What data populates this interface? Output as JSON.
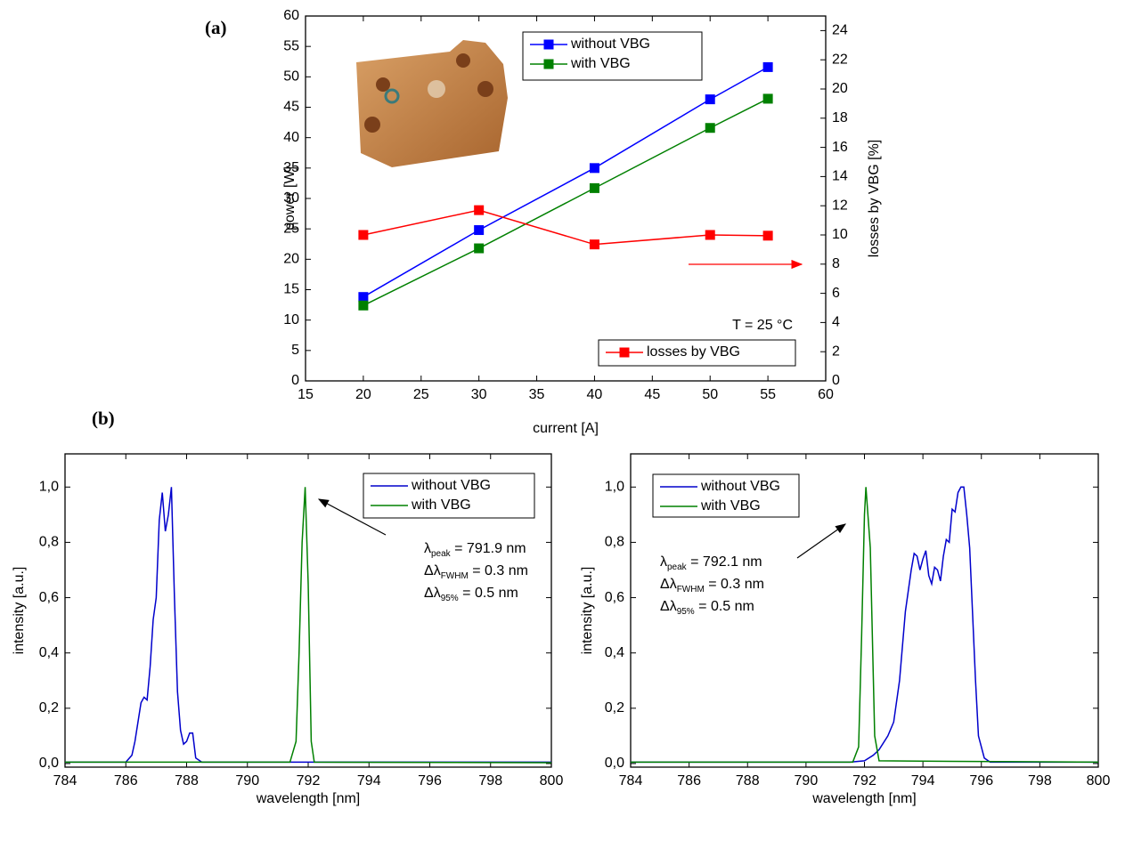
{
  "chart_data": [
    {
      "type": "line",
      "panel_label": "(a)",
      "x_label": "current [A]",
      "y_label": "power [W]",
      "y2_label": "losses by VBG [%]",
      "x": [
        20,
        30,
        40,
        50,
        55
      ],
      "series": [
        {
          "name": "without VBG",
          "color": "#0000ff",
          "values": [
            13.8,
            24.8,
            35,
            46.3,
            51.6
          ]
        },
        {
          "name": "with VBG",
          "color": "#008000",
          "values": [
            12.4,
            21.8,
            31.7,
            41.6,
            46.4
          ]
        },
        {
          "name": "losses by VBG",
          "color": "#ff0000",
          "axis": "y2",
          "values": [
            10.0,
            11.7,
            9.35,
            10.0,
            9.95
          ]
        }
      ],
      "xlim": [
        15,
        60
      ],
      "xticks": [
        15,
        20,
        25,
        30,
        35,
        40,
        45,
        50,
        55,
        60
      ],
      "ylim": [
        0,
        60
      ],
      "yticks": [
        0,
        5,
        10,
        15,
        20,
        25,
        30,
        35,
        40,
        45,
        50,
        55,
        60
      ],
      "y2lim": [
        0,
        25
      ],
      "y2ticks": [
        0,
        2,
        4,
        6,
        8,
        10,
        12,
        14,
        16,
        18,
        20,
        22,
        24
      ],
      "annotations": [
        "T = 25 °C"
      ],
      "markers": true
    },
    {
      "type": "line",
      "panel_label": "(b)",
      "x_label": "wavelength [nm]",
      "y_label": "intensity [a.u.]",
      "series": [
        {
          "name": "without VBG",
          "color": "#0000cc",
          "x": [
            784,
            786,
            786.2,
            786.3,
            786.4,
            786.5,
            786.6,
            786.7,
            786.8,
            786.9,
            787.0,
            787.1,
            787.2,
            787.3,
            787.4,
            787.5,
            787.6,
            787.7,
            787.8,
            787.9,
            788.0,
            788.1,
            788.2,
            788.3,
            788.5,
            800
          ],
          "values": [
            0.005,
            0.005,
            0.03,
            0.08,
            0.15,
            0.22,
            0.24,
            0.23,
            0.35,
            0.52,
            0.6,
            0.88,
            0.98,
            0.84,
            0.9,
            1.0,
            0.6,
            0.26,
            0.12,
            0.07,
            0.08,
            0.11,
            0.11,
            0.02,
            0.005,
            0.005
          ]
        },
        {
          "name": "with VBG",
          "color": "#008000",
          "x": [
            784,
            791.4,
            791.6,
            791.7,
            791.8,
            791.9,
            792.0,
            792.1,
            792.2,
            800
          ],
          "values": [
            0.005,
            0.005,
            0.08,
            0.4,
            0.8,
            1.0,
            0.65,
            0.08,
            0.005,
            0.003
          ]
        }
      ],
      "xlim": [
        784,
        800
      ],
      "xticks": [
        784,
        786,
        788,
        790,
        792,
        794,
        796,
        798,
        800
      ],
      "ylim": [
        -0.013,
        1.12
      ],
      "yticks": [
        {
          "value": 0,
          "label": "0,0"
        },
        {
          "value": 0.2,
          "label": "0,2"
        },
        {
          "value": 0.4,
          "label": "0,4"
        },
        {
          "value": 0.6,
          "label": "0,6"
        },
        {
          "value": 0.8,
          "label": "0,8"
        },
        {
          "value": 1.0,
          "label": "1,0"
        }
      ],
      "annotations": [
        {
          "symbol": "λ",
          "sub": "peak",
          "text": " = 791.9 nm"
        },
        {
          "symbol": "Δλ",
          "sub": "FWHM",
          "text": " = 0.3 nm"
        },
        {
          "symbol": "Δλ",
          "sub": "95%",
          "text": " = 0.5 nm"
        }
      ]
    },
    {
      "type": "line",
      "x_label": "wavelength [nm]",
      "y_label": "intensity [a.u.]",
      "series": [
        {
          "name": "without VBG",
          "color": "#0000cc",
          "x": [
            784,
            791.5,
            792.0,
            792.3,
            792.5,
            792.8,
            793.0,
            793.2,
            793.4,
            793.6,
            793.7,
            793.8,
            793.9,
            794.0,
            794.1,
            794.2,
            794.3,
            794.4,
            794.5,
            794.6,
            794.7,
            794.8,
            794.9,
            795.0,
            795.1,
            795.2,
            795.3,
            795.4,
            795.5,
            795.6,
            795.8,
            795.9,
            796.1,
            796.3,
            800
          ],
          "values": [
            0.005,
            0.005,
            0.01,
            0.03,
            0.05,
            0.1,
            0.15,
            0.3,
            0.55,
            0.7,
            0.76,
            0.75,
            0.7,
            0.74,
            0.77,
            0.68,
            0.65,
            0.71,
            0.7,
            0.66,
            0.75,
            0.81,
            0.8,
            0.92,
            0.91,
            0.98,
            1.0,
            1.0,
            0.9,
            0.78,
            0.3,
            0.1,
            0.02,
            0.005,
            0.005
          ]
        },
        {
          "name": "with VBG",
          "color": "#008000",
          "x": [
            784,
            791.6,
            791.8,
            791.9,
            792.0,
            792.05,
            792.2,
            792.35,
            792.5,
            795,
            800
          ],
          "values": [
            0.005,
            0.005,
            0.06,
            0.45,
            0.9,
            1.0,
            0.78,
            0.1,
            0.01,
            0.008,
            0.005
          ]
        }
      ],
      "xlim": [
        784,
        800
      ],
      "xticks": [
        784,
        786,
        788,
        790,
        792,
        794,
        796,
        798,
        800
      ],
      "ylim": [
        -0.013,
        1.12
      ],
      "yticks": [
        {
          "value": 0,
          "label": "0,0"
        },
        {
          "value": 0.2,
          "label": "0,2"
        },
        {
          "value": 0.4,
          "label": "0,4"
        },
        {
          "value": 0.6,
          "label": "0,6"
        },
        {
          "value": 0.8,
          "label": "0,8"
        },
        {
          "value": 1.0,
          "label": "1,0"
        }
      ],
      "annotations": [
        {
          "symbol": "λ",
          "sub": "peak",
          "text": " = 792.1 nm"
        },
        {
          "symbol": "Δλ",
          "sub": "FWHM",
          "text": " = 0.3 nm"
        },
        {
          "symbol": "Δλ",
          "sub": "95%",
          "text": " = 0.5 nm"
        }
      ]
    }
  ]
}
